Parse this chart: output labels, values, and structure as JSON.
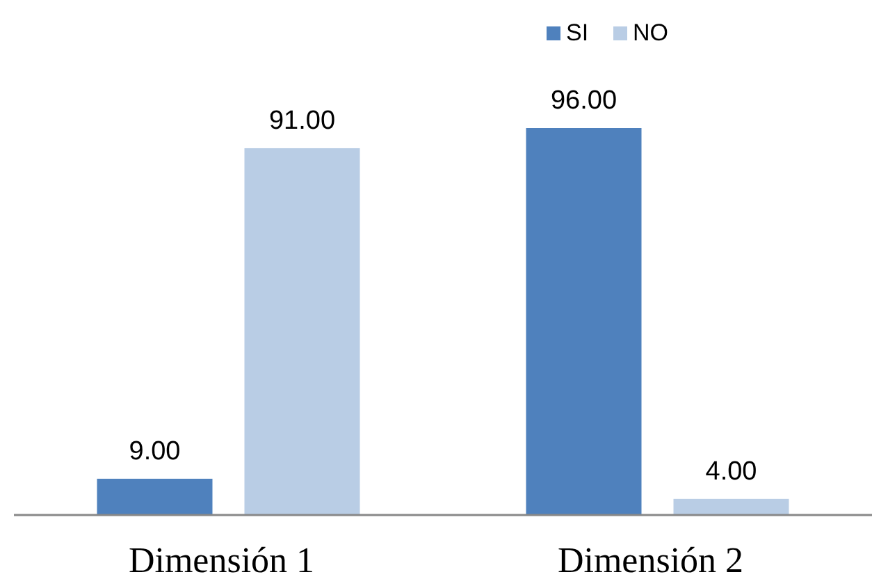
{
  "chart_data": {
    "type": "bar",
    "categories": [
      "Dimensión 1",
      "Dimensión 2"
    ],
    "series": [
      {
        "name": "SI",
        "color": "#4f81bd",
        "values": [
          9,
          96
        ],
        "value_labels": [
          "9.00",
          "96.00"
        ]
      },
      {
        "name": "NO",
        "color": "#b9cde5",
        "values": [
          91,
          4
        ],
        "value_labels": [
          "91.00",
          "4.00"
        ]
      }
    ],
    "legend": "top right",
    "grid": false
  }
}
